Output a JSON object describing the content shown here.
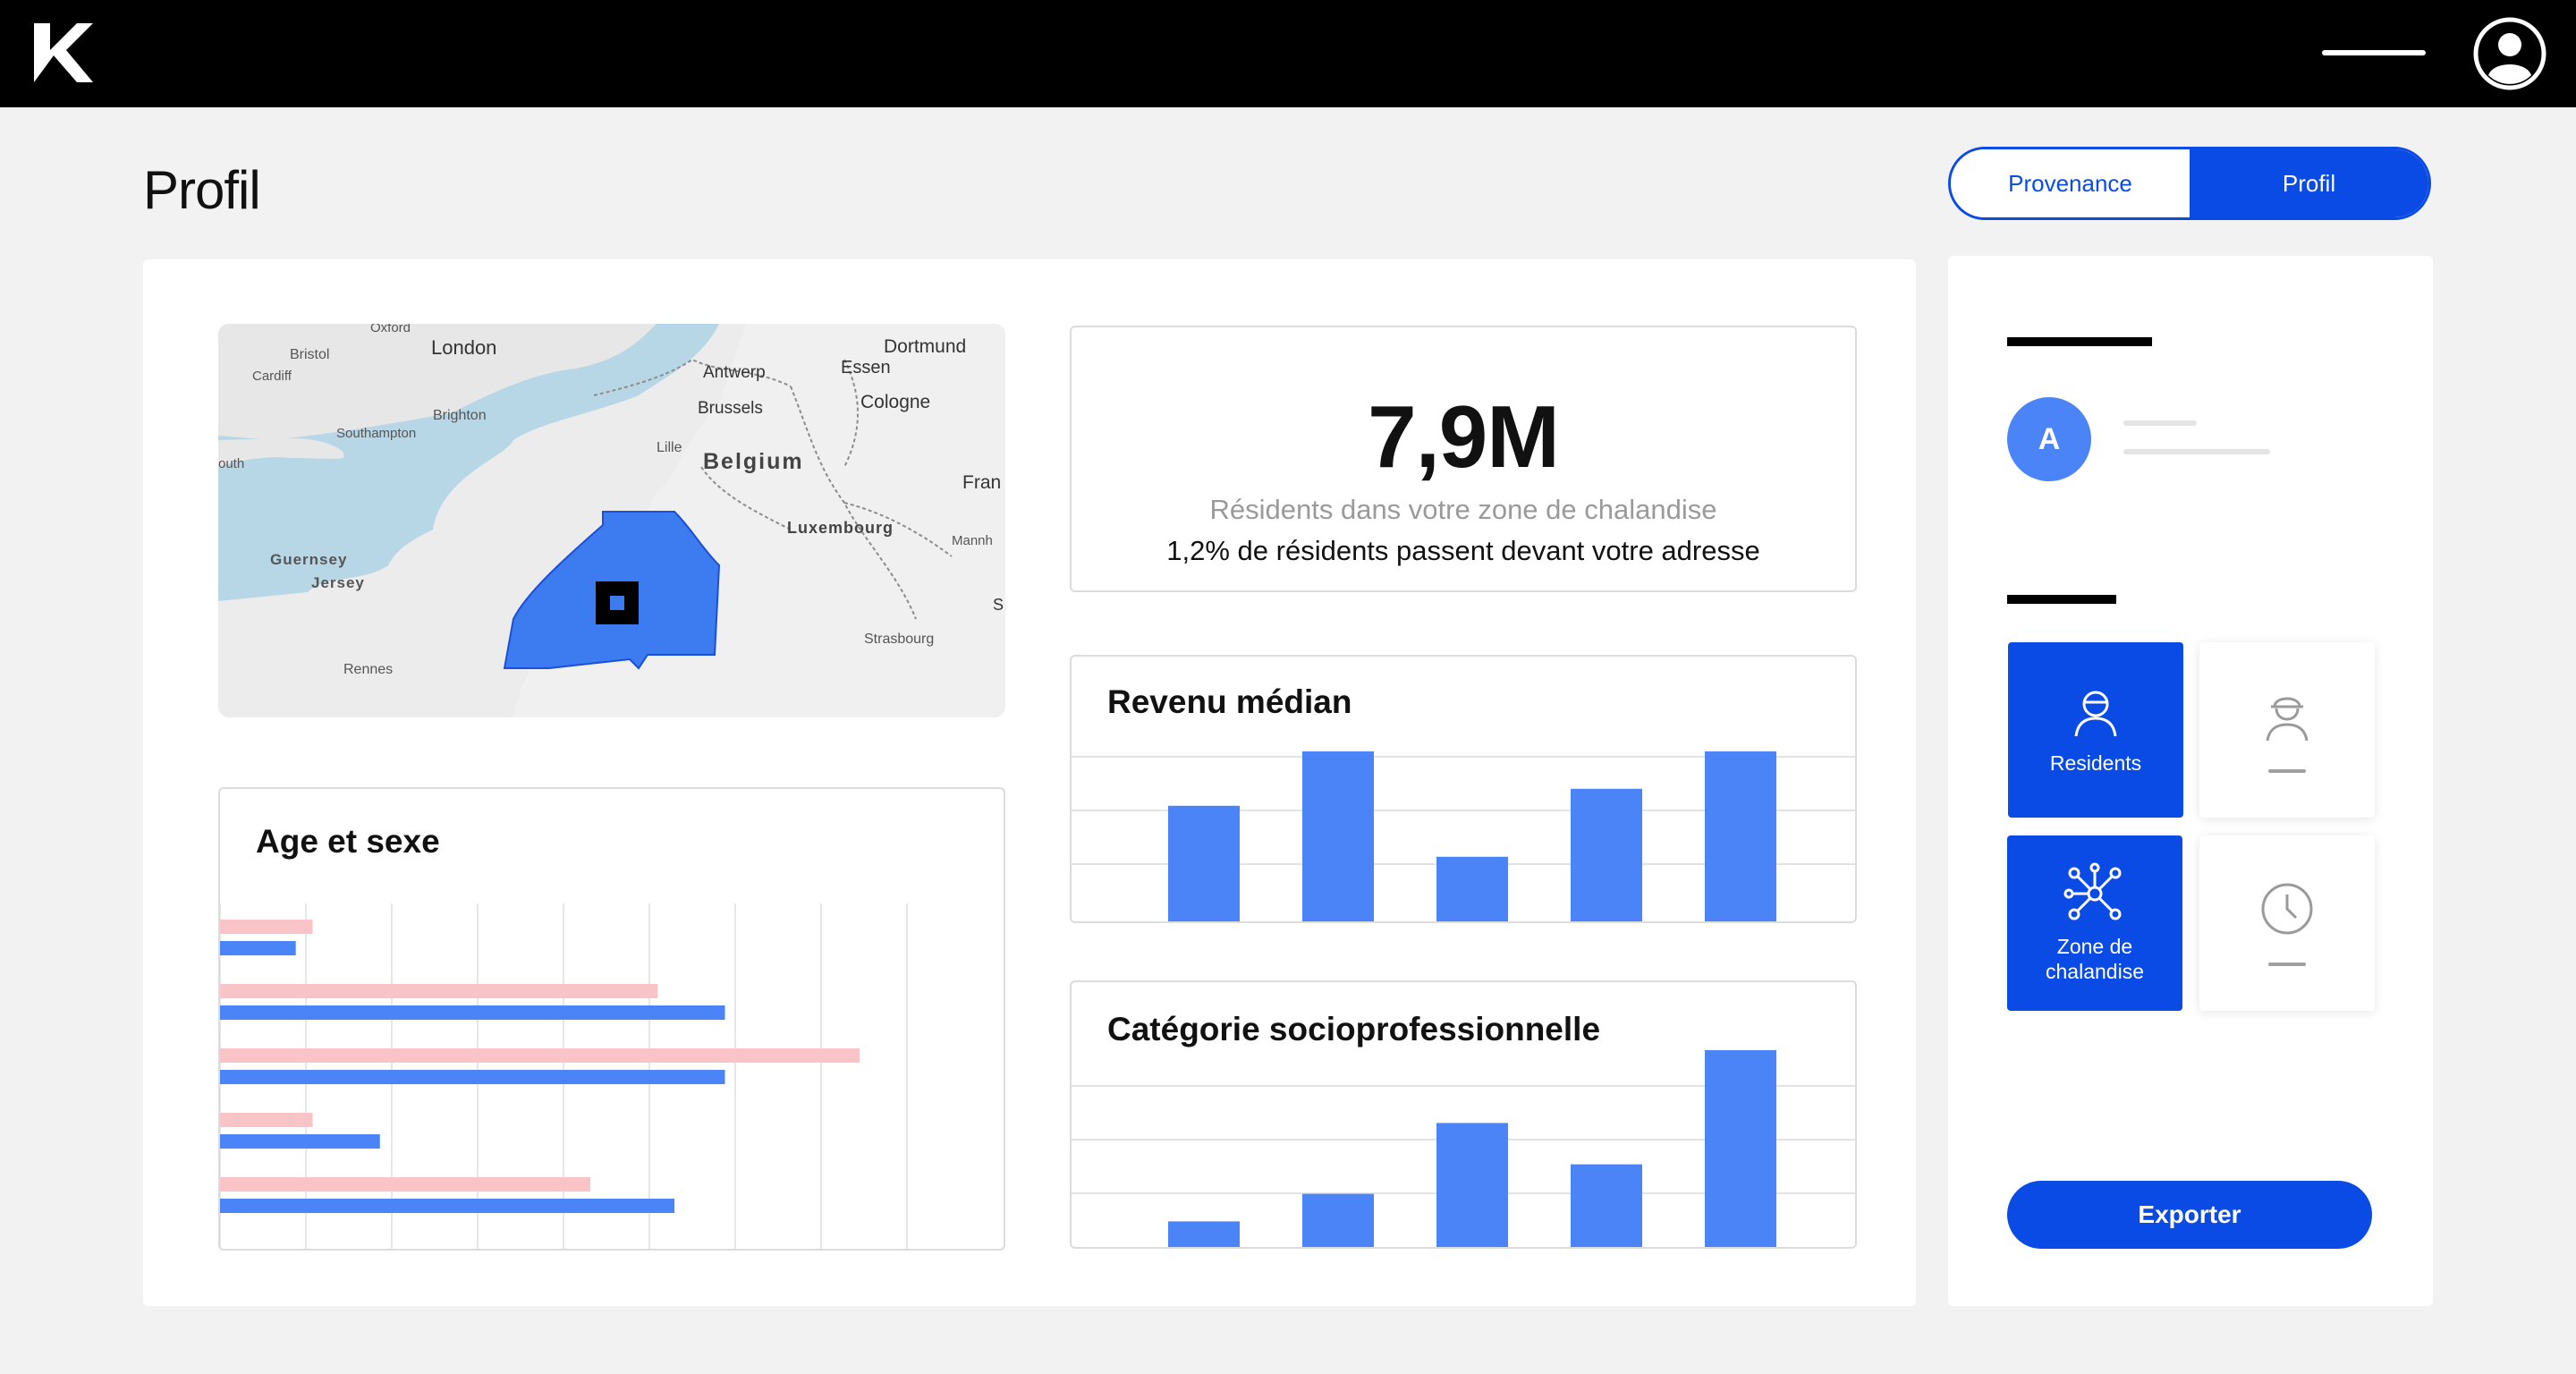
{
  "colors": {
    "accent": "#0a4be6",
    "bar_blue": "#4a84f6",
    "bar_pink": "#f8c4c8",
    "map_water": "#b8d7e6",
    "map_land": "#ededed",
    "map_zone": "#3d7cf0"
  },
  "header": {
    "logo_icon": "brand-logo-icon",
    "menu_icon": "hamburger-line-icon",
    "user_icon": "user-account-icon"
  },
  "page": {
    "title": "Profil"
  },
  "view_toggle": {
    "options": [
      "Provenance",
      "Profil"
    ],
    "selected": "Profil"
  },
  "map": {
    "labels": [
      "Oxford",
      "Bristol",
      "London",
      "Cardiff",
      "Brighton",
      "Southampton",
      "outh",
      "Guernsey",
      "Jersey",
      "Rennes",
      "Antwerp",
      "Brussels",
      "Lille",
      "Belgium",
      "Dortmund",
      "Essen",
      "Cologne",
      "Luxembourg",
      "Fran",
      "Mannh",
      "Strasbourg",
      "S"
    ]
  },
  "stats": {
    "big_value": "7,9M",
    "subtitle": "Résidents dans votre zone de chalandise",
    "detail": "1,2% de résidents passent devant votre adresse"
  },
  "charts_titles": {
    "revenue": "Revenu médian",
    "socio": "Catégorie socioprofessionnelle",
    "age": "Age et sexe"
  },
  "chart_data": [
    {
      "type": "bar",
      "title": "Revenu médian",
      "values": [
        68,
        100,
        38,
        78,
        100
      ],
      "ylim": [
        0,
        100
      ],
      "grid": true
    },
    {
      "type": "bar",
      "title": "Catégorie socioprofessionnelle",
      "values": [
        13,
        27,
        63,
        42,
        100
      ],
      "ylim": [
        0,
        100
      ],
      "grid": true
    },
    {
      "type": "bar",
      "orientation": "horizontal",
      "title": "Age et sexe",
      "series": [
        {
          "values": [
            1.1,
            5.2,
            7.6,
            1.1,
            4.4
          ]
        },
        {
          "values": [
            0.9,
            6.0,
            6.0,
            1.9,
            5.4
          ]
        }
      ],
      "xlim": [
        0,
        9
      ],
      "grid": true
    }
  ],
  "sidebar": {
    "avatar_letter": "A",
    "tiles": [
      {
        "label": "Residents",
        "icon": "resident-person-icon",
        "active": true
      },
      {
        "label": "",
        "icon": "worker-helmet-icon",
        "active": false
      },
      {
        "label": "Zone de\nchalandise",
        "icon": "network-nodes-icon",
        "active": true
      },
      {
        "label": "",
        "icon": "clock-icon",
        "active": false
      }
    ],
    "export_label": "Exporter"
  }
}
